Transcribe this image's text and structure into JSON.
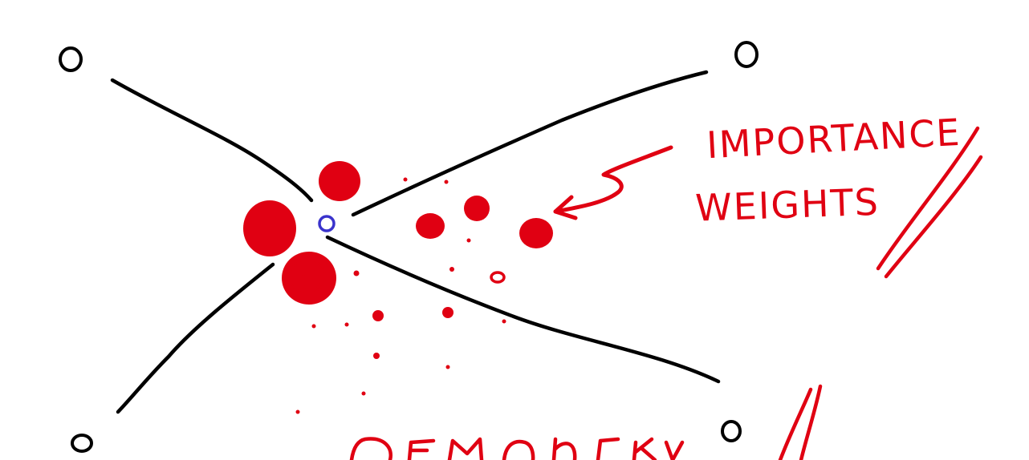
{
  "annotation": {
    "line1": "IMPORTANCE",
    "line2": "WEIGHTS"
  },
  "colors": {
    "background": "#ffffff",
    "ink": "#000000",
    "highlight": "#e00012",
    "center_marker": "#3a33cc"
  }
}
